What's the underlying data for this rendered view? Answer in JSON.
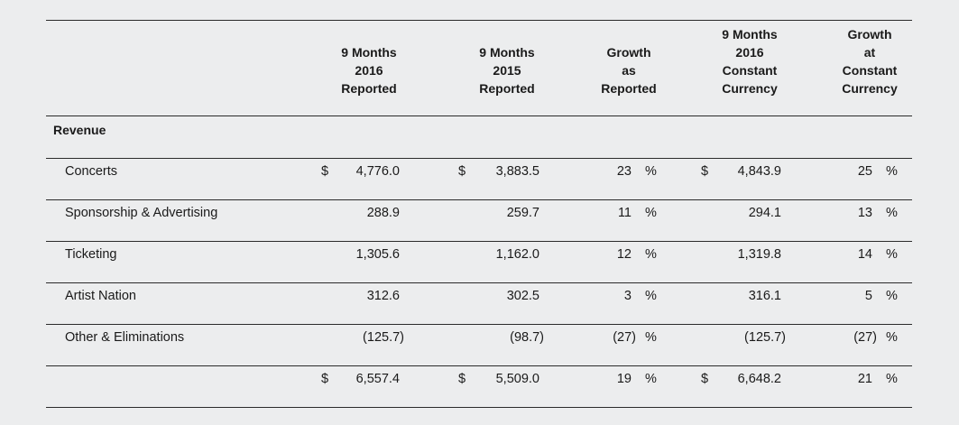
{
  "headers": [
    {
      "lines": [
        "9 Months",
        "2016",
        "Reported"
      ]
    },
    {
      "lines": [
        "9 Months",
        "2015",
        "Reported"
      ]
    },
    {
      "lines": [
        "Growth",
        "as",
        "Reported"
      ]
    },
    {
      "lines": [
        "9 Months",
        "2016",
        "Constant",
        "Currency"
      ]
    },
    {
      "lines": [
        "Growth",
        "at",
        "Constant",
        "Currency"
      ]
    }
  ],
  "section_label": "Revenue",
  "currency_symbol": "$",
  "percent_symbol": "%",
  "rows": [
    {
      "label": "Concerts",
      "rep2016": "4,776.0",
      "rep2015": "3,883.5",
      "growth": "23",
      "cc2016": "4,843.9",
      "growth_cc": "25",
      "show_dollar": true
    },
    {
      "label": "Sponsorship & Advertising",
      "rep2016": "288.9",
      "rep2015": "259.7",
      "growth": "11",
      "cc2016": "294.1",
      "growth_cc": "13",
      "show_dollar": false
    },
    {
      "label": "Ticketing",
      "rep2016": "1,305.6",
      "rep2015": "1,162.0",
      "growth": "12",
      "cc2016": "1,319.8",
      "growth_cc": "14",
      "show_dollar": false
    },
    {
      "label": "Artist Nation",
      "rep2016": "312.6",
      "rep2015": "302.5",
      "growth": "3",
      "cc2016": "316.1",
      "growth_cc": "5",
      "show_dollar": false
    },
    {
      "label": "Other & Eliminations",
      "rep2016": "(125.7)",
      "rep2015": "(98.7)",
      "growth": "(27)",
      "cc2016": "(125.7)",
      "growth_cc": "(27)",
      "show_dollar": false
    },
    {
      "label": "",
      "rep2016": "6,557.4",
      "rep2015": "5,509.0",
      "growth": "19",
      "cc2016": "6,648.2",
      "growth_cc": "21",
      "show_dollar": true
    }
  ]
}
